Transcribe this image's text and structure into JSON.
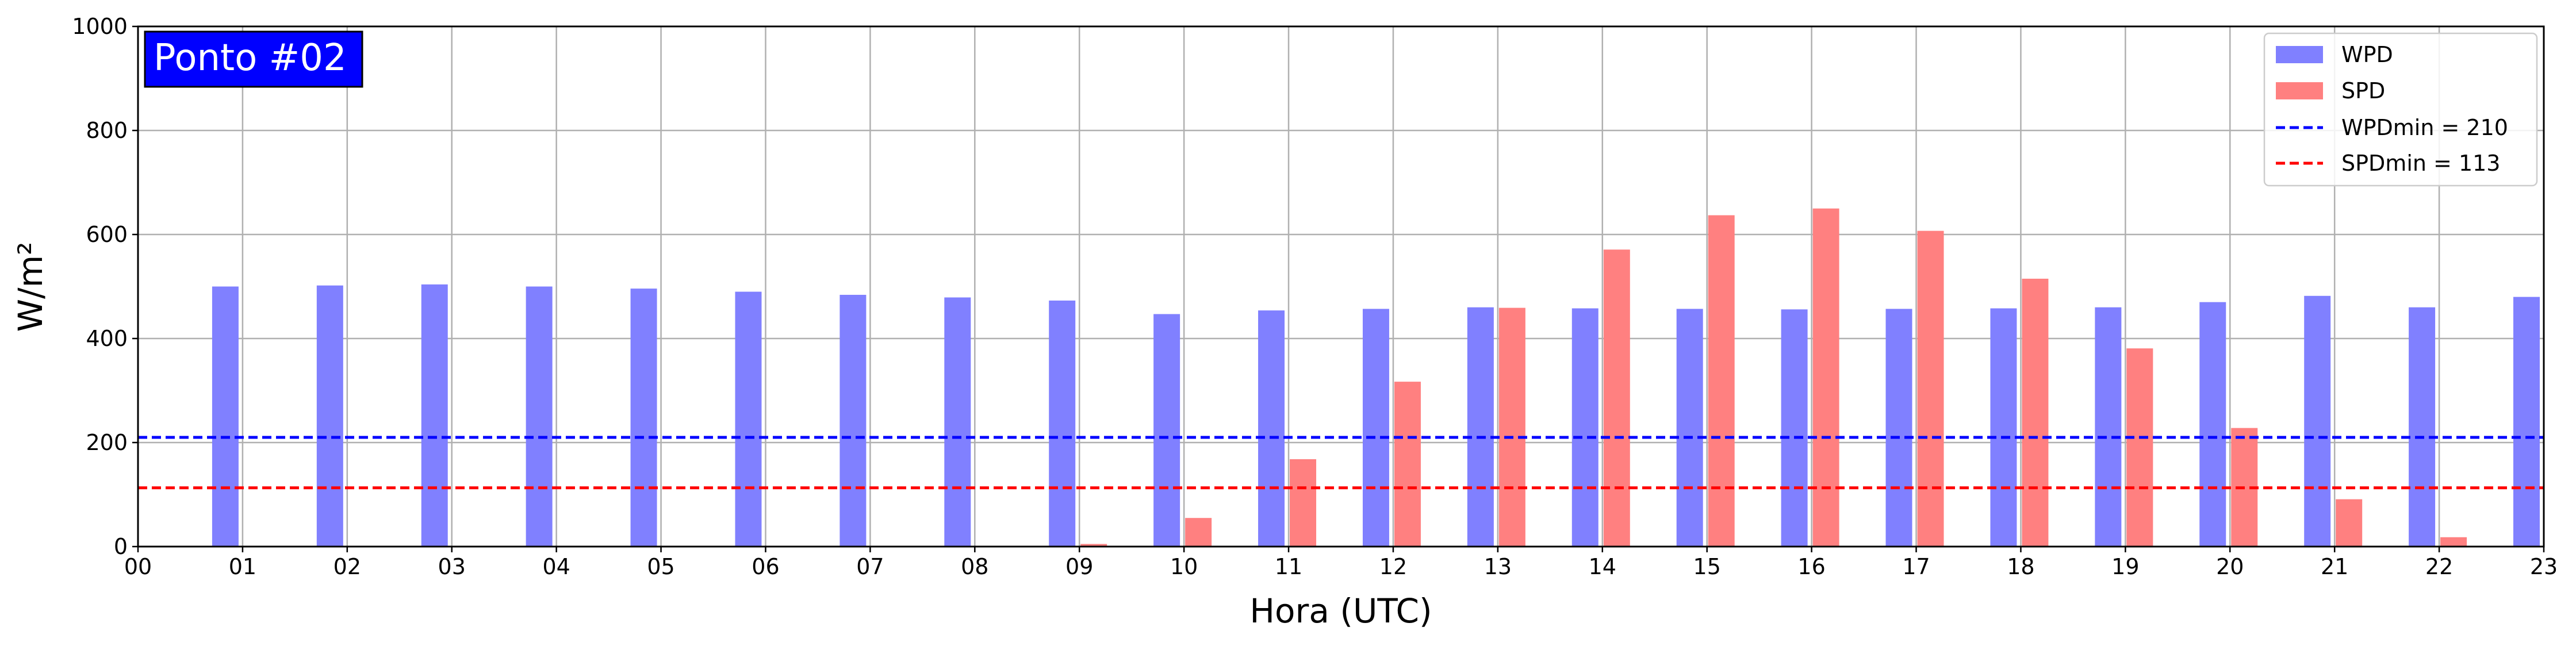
{
  "chart_data": {
    "type": "bar",
    "title": "Ponto #02",
    "xlabel": "Hora (UTC)",
    "ylabel": "W/m²",
    "ylim": [
      0,
      1000
    ],
    "yticks": [
      0,
      200,
      400,
      600,
      800,
      1000
    ],
    "xticks": [
      "00",
      "01",
      "02",
      "03",
      "04",
      "05",
      "06",
      "07",
      "08",
      "09",
      "10",
      "11",
      "12",
      "13",
      "14",
      "15",
      "16",
      "17",
      "18",
      "19",
      "20",
      "21",
      "22",
      "23"
    ],
    "grid": true,
    "legend_position": "top-right",
    "series": [
      {
        "name": "WPD",
        "color": "#8080ff",
        "hours": [
          1,
          2,
          3,
          4,
          5,
          6,
          7,
          8,
          9,
          10,
          11,
          12,
          13,
          14,
          15,
          16,
          17,
          18,
          19,
          20,
          21,
          22,
          23
        ],
        "values": [
          500,
          502,
          504,
          500,
          496,
          490,
          484,
          479,
          473,
          447,
          454,
          457,
          460,
          458,
          457,
          456,
          457,
          458,
          460,
          470,
          482,
          460,
          480
        ]
      },
      {
        "name": "SPD",
        "color": "#ff8080",
        "hours": [
          9,
          10,
          11,
          12,
          13,
          14,
          15,
          16,
          17,
          18,
          19,
          20,
          21,
          22
        ],
        "values": [
          5,
          55,
          168,
          317,
          459,
          571,
          637,
          650,
          607,
          515,
          381,
          228,
          91,
          18
        ]
      }
    ],
    "reference_lines": [
      {
        "label": "WPDmin = 210",
        "value": 210,
        "color": "#0000ff"
      },
      {
        "label": "SPDmin = 113",
        "value": 113,
        "color": "#ff0000"
      }
    ]
  }
}
